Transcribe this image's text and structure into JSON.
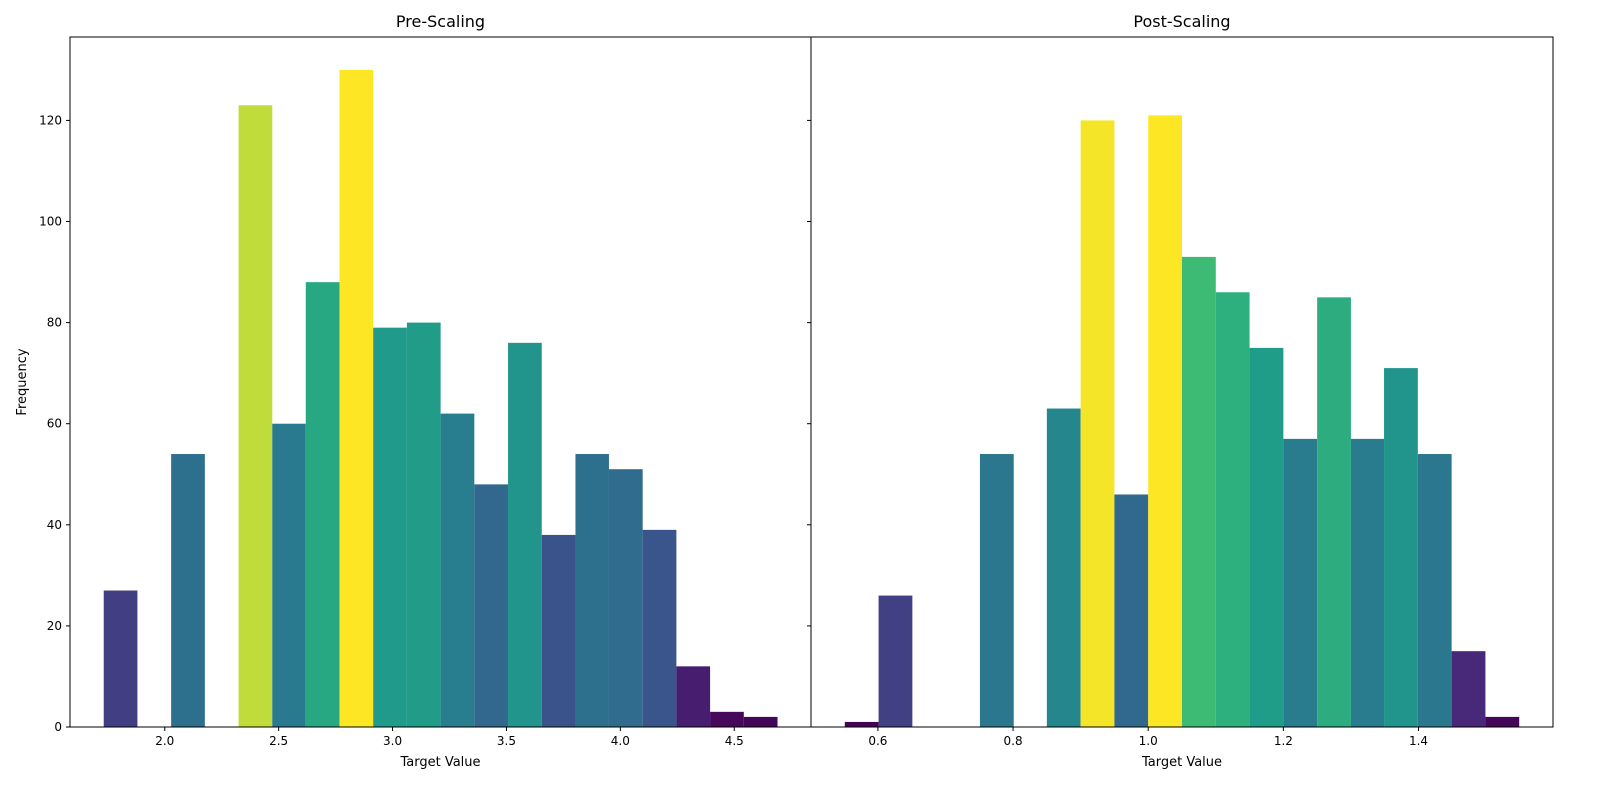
{
  "chart_data": [
    {
      "type": "histogram",
      "title": "Pre-Scaling",
      "xlabel": "Target Value",
      "ylabel": "Frequency",
      "colormap": "viridis",
      "bins": [
        1.732,
        1.88,
        2.028,
        2.176,
        2.324,
        2.472,
        2.619,
        2.767,
        2.915,
        3.063,
        3.211,
        3.359,
        3.507,
        3.655,
        3.803,
        3.95,
        4.098,
        4.246,
        4.394,
        4.542,
        4.69
      ],
      "values": [
        27,
        0,
        54,
        0,
        123,
        60,
        88,
        130,
        79,
        80,
        62,
        48,
        76,
        38,
        54,
        51,
        39,
        12,
        3,
        2
      ],
      "xlim": [
        1.584,
        4.837
      ],
      "ylim": [
        0,
        136.5
      ],
      "xticks": [
        {
          "value": 2,
          "label": "2.0"
        },
        2.5,
        {
          "value": 3,
          "label": "3.0"
        },
        3.5,
        {
          "value": 4,
          "label": "4.0"
        },
        4.5
      ],
      "yticks": [
        0,
        20,
        40,
        60,
        80,
        100,
        120
      ]
    },
    {
      "type": "histogram",
      "title": "Post-Scaling",
      "xlabel": "Target Value",
      "colormap": "viridis",
      "bins": [
        0.551,
        0.601,
        0.651,
        0.701,
        0.751,
        0.801,
        0.85,
        0.9,
        0.95,
        1.0,
        1.05,
        1.1,
        1.15,
        1.2,
        1.25,
        1.3,
        1.349,
        1.399,
        1.449,
        1.499,
        1.549
      ],
      "values": [
        1,
        26,
        0,
        0,
        54,
        0,
        63,
        120,
        46,
        121,
        93,
        86,
        75,
        57,
        85,
        57,
        71,
        54,
        15,
        2
      ],
      "xlim": [
        0.501,
        1.599
      ],
      "ylim": [
        0,
        136.5
      ],
      "xticks": [
        0.6,
        0.8,
        {
          "value": 1,
          "label": "1.0"
        },
        1.2,
        1.4
      ],
      "yticks": [
        0,
        20,
        40,
        60,
        80,
        100,
        120
      ],
      "ytick_labels_shown": false
    }
  ]
}
